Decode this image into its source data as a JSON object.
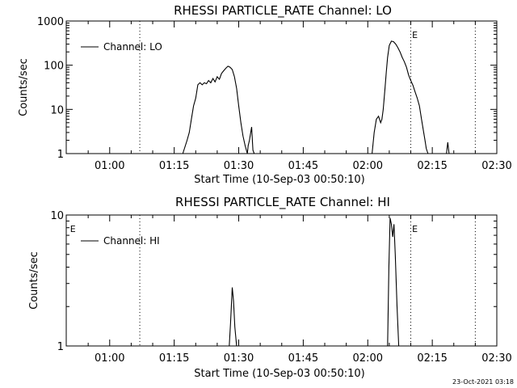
{
  "chart_data": [
    {
      "type": "line",
      "title": "RHESSI PARTICLE_RATE Channel: LO",
      "xlabel": "Start Time (10-Sep-03 00:50:10)",
      "ylabel": "Counts/sec",
      "y_scale": "log",
      "ylim": [
        1,
        1000
      ],
      "y_ticks": [
        1,
        10,
        100,
        1000
      ],
      "y_tick_labels": [
        "1",
        "10",
        "100",
        "1000"
      ],
      "xlim_minutes_after_0100": [
        -10.1,
        90
      ],
      "x_ticks_minutes_after_0100": [
        0,
        15,
        30,
        45,
        60,
        75,
        90
      ],
      "x_tick_labels": [
        "01:00",
        "01:15",
        "01:30",
        "01:45",
        "02:00",
        "02:15",
        "02:30"
      ],
      "legend": {
        "label": "Channel: LO",
        "position": "top-left"
      },
      "dotted_lines_minutes_after_0100": [
        7,
        70,
        85
      ],
      "markers": [
        {
          "label": "E",
          "x_minutes_after_0100": 70.3
        }
      ],
      "series": [
        {
          "x": [
            17,
            18,
            18.5,
            19,
            19.5,
            20,
            20.5,
            21,
            21.5,
            22,
            22.5,
            23,
            23.5,
            24,
            24.5,
            25,
            25.5,
            26,
            26.5,
            27,
            27.5,
            28,
            28.5,
            29,
            29.5,
            30,
            30.5,
            31,
            31.5,
            32,
            32.2,
            32.5,
            33,
            33.3,
            33.6
          ],
          "y": [
            1,
            2,
            3,
            6,
            12,
            18,
            36,
            40,
            36,
            40,
            38,
            45,
            40,
            50,
            42,
            55,
            48,
            65,
            75,
            85,
            95,
            90,
            80,
            55,
            30,
            12,
            5,
            2.5,
            1.5,
            1,
            1.5,
            2,
            4,
            1.2,
            1
          ]
        },
        {
          "x": [
            61,
            61.5,
            62,
            62.5,
            63,
            63.3,
            63.6,
            64,
            64.3,
            64.6,
            65,
            65.5,
            66,
            66.5,
            67,
            67.5,
            68,
            68.5,
            69,
            69.5,
            70,
            70.5,
            71,
            71.5,
            72,
            72.5,
            73,
            73.3,
            73.6,
            74
          ],
          "y": [
            1,
            3,
            6,
            7,
            5,
            6,
            10,
            30,
            70,
            150,
            280,
            350,
            340,
            300,
            250,
            200,
            150,
            120,
            90,
            60,
            45,
            35,
            25,
            18,
            12,
            6,
            3,
            2,
            1.3,
            1
          ]
        },
        {
          "x": [
            78.3,
            78.6,
            78.9
          ],
          "y": [
            1,
            1.8,
            1
          ]
        }
      ]
    },
    {
      "type": "line",
      "title": "RHESSI PARTICLE_RATE Channel: HI",
      "xlabel": "Start Time (10-Sep-03 00:50:10)",
      "ylabel": "Counts/sec",
      "y_scale": "log",
      "ylim": [
        1,
        10
      ],
      "y_ticks": [
        1,
        10
      ],
      "y_tick_labels": [
        "1",
        "10"
      ],
      "xlim_minutes_after_0100": [
        -10.1,
        90
      ],
      "x_ticks_minutes_after_0100": [
        0,
        15,
        30,
        45,
        60,
        75,
        90
      ],
      "x_tick_labels": [
        "01:00",
        "01:15",
        "01:30",
        "01:45",
        "02:00",
        "02:15",
        "02:30"
      ],
      "legend": {
        "label": "Channel: HI",
        "position": "top-left"
      },
      "dotted_lines_minutes_after_0100": [
        7,
        70,
        85
      ],
      "markers": [
        {
          "label": "E",
          "x_minutes_after_0100": -9.2
        },
        {
          "label": "E",
          "x_minutes_after_0100": 70.3
        }
      ],
      "series": [
        {
          "x": [
            27.8,
            28.1,
            28.5,
            28.8,
            29.1,
            29.5
          ],
          "y": [
            1,
            1.5,
            2.8,
            2.2,
            1.4,
            1
          ]
        },
        {
          "x": [
            64.6,
            64.9,
            65.2,
            65.5,
            65.8,
            66.1,
            66.4,
            66.8,
            67.2
          ],
          "y": [
            1,
            4,
            9.5,
            8.5,
            6.8,
            8.5,
            5,
            2,
            1
          ]
        }
      ]
    }
  ],
  "timestamp": "23-Oct-2021 03:18"
}
